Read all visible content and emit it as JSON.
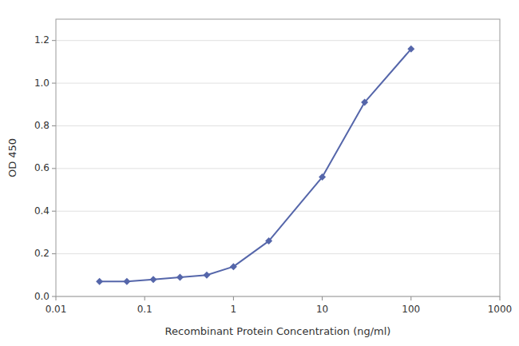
{
  "chart_data": {
    "type": "line",
    "xlabel": "Recombinant Protein Concentration (ng/ml)",
    "ylabel": "OD 450",
    "x": [
      0.031,
      0.063,
      0.125,
      0.25,
      0.5,
      1.0,
      2.5,
      10.0,
      30.0,
      100.0
    ],
    "values": [
      0.07,
      0.07,
      0.08,
      0.09,
      0.1,
      0.14,
      0.26,
      0.56,
      0.91,
      1.16
    ],
    "color": "#5566aa",
    "marker": "diamond",
    "log": "x",
    "xlim": [
      0.01,
      1000
    ],
    "xticks": [
      0.01,
      0.1,
      1,
      10,
      100,
      1000
    ],
    "ylim": [
      0,
      1.3
    ],
    "yticks": [
      {
        "value": 0,
        "label": "0.0"
      },
      0.2,
      0.4,
      0.6,
      0.8,
      {
        "value": 1.0,
        "label": "1.0"
      },
      1.2
    ],
    "grid": true
  }
}
